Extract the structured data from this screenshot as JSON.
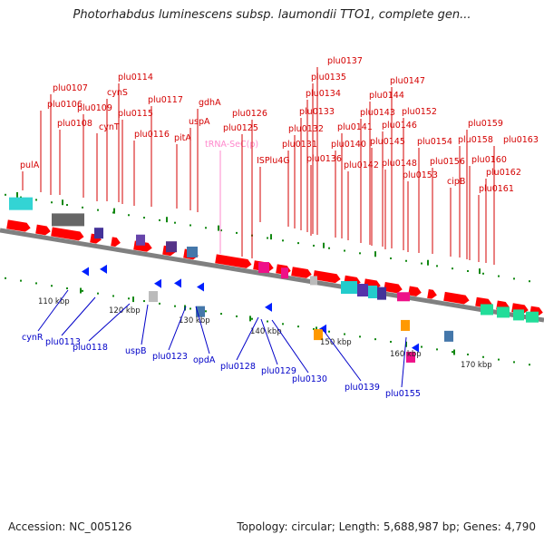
{
  "title": "Photorhabdus luminescens subsp. laumondii TTO1, complete gen...",
  "footer": {
    "accession": "Accession: NC_005126",
    "summary": "Topology: circular; Length: 5,688,987 bp; Genes: 4,790"
  },
  "colors": {
    "top_label": "#d40000",
    "bottom_label": "#0000c8",
    "rna_label": "#ff88cc",
    "gene_forward": "#ff0000",
    "gene_reverse": "#0020ff",
    "backbone": "#808080",
    "tick": "#118811"
  },
  "kbp_ticks": [
    "110 kbp",
    "120 kbp",
    "130 kbp",
    "140 kbp",
    "150 kbp",
    "160 kbp",
    "170 kbp"
  ],
  "top_labels": [
    "pulA",
    "plu0106",
    "plu0107",
    "plu0108",
    "plu0109",
    "cynT",
    "cynS",
    "plu0114",
    "plu0115",
    "plu0116",
    "plu0117",
    "pitA",
    "uspA",
    "gdhA",
    "tRNA-SeC(p)",
    "plu0125",
    "plu0126",
    "ISPlu4G",
    "plu0131",
    "plu0132",
    "plu0133",
    "plu0134",
    "plu0135",
    "plu0137",
    "plu0136",
    "plu0140",
    "plu0141",
    "plu0142",
    "plu0143",
    "plu0144",
    "plu0145",
    "plu0146",
    "plu0147",
    "plu0148",
    "plu0152",
    "plu0153",
    "plu0154",
    "plu0156",
    "cipB",
    "plu0158",
    "plu0159",
    "plu0160",
    "plu0161",
    "plu0162",
    "plu0163"
  ],
  "bottom_labels": [
    "cynR",
    "plu0113",
    "plu0118",
    "uspB",
    "plu0123",
    "opdA",
    "plu0128",
    "plu0129",
    "plu0130",
    "plu0139",
    "plu0155"
  ]
}
